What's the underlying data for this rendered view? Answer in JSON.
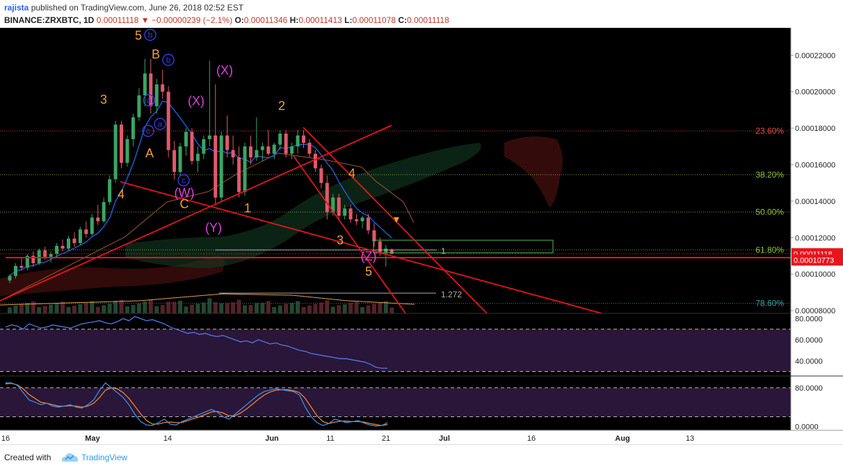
{
  "header": {
    "user": "rajista",
    "published": "published on TradingView.com, June 26, 2018 02:52 EST",
    "symbol": "BINANCE:ZRXBTC, 1D",
    "last": "0.00011118",
    "change_arrow": "▼",
    "change": "−0.00000239 (−2.1%)",
    "o_label": "O:",
    "o": "0.00011346",
    "h_label": "H:",
    "h": "0.00011413",
    "l_label": "L:",
    "l": "0.00011078",
    "c_label": "C:",
    "c": "0.00011118"
  },
  "footer": {
    "created": "Created with",
    "brand": "TradingView",
    "brand_icon": "tradingview-cloud-logo"
  },
  "colors": {
    "background": "#000000",
    "up": "#3aa564",
    "down": "#e05a6a",
    "ma": "#1f5fe0",
    "trendline": "#e8141c",
    "fib": "#c8c8c8",
    "wave_orange": "#f0a030",
    "wave_magenta": "#e040e0",
    "wave_blue": "#3a3ae8",
    "rsi": "#4f79e8",
    "stoch_k": "#3a8ee8",
    "stoch_d": "#f08030"
  },
  "chart_data": [
    {
      "type": "candlestick",
      "title": "",
      "x_axis": {
        "type": "date",
        "ticks": [
          "16",
          "May",
          "14",
          "Jun",
          "11",
          "21",
          "Jul",
          "16",
          "Aug",
          "13"
        ],
        "range": [
          "2018-04-16",
          "2018-08-13"
        ]
      },
      "y_axis": {
        "ticks": [
          "0.00022000",
          "0.00020000",
          "0.00018000",
          "0.00016000",
          "0.00014000",
          "0.00012000",
          "0.00010000",
          "0.00008000"
        ],
        "range": [
          7.85e-05,
          0.000235
        ]
      },
      "grid": false,
      "price_tags": [
        {
          "value": 0.00011118,
          "label": "0.00011118",
          "color": "#e8141c"
        },
        {
          "value": 0.00010773,
          "label": "0.00010773",
          "color": "#e8141c"
        }
      ],
      "fib_levels": [
        {
          "label": "23.60%",
          "value": 0.0001785,
          "color": "#e05050"
        },
        {
          "label": "38.20%",
          "value": 0.0001545,
          "color": "#8fbf40"
        },
        {
          "label": "50.00%",
          "value": 0.000134,
          "color": "#8fbf40"
        },
        {
          "label": "61.80%",
          "value": 0.0001133,
          "color": "#8fbf40"
        },
        {
          "label": "78.60%",
          "value": 8.4e-05,
          "color": "#3aa5a5"
        }
      ],
      "extension_labels": [
        {
          "label": "1",
          "value": 0.0001126
        },
        {
          "label": "1.272",
          "value": 8.88e-05
        }
      ],
      "candles_approx": [
        [
          9.65e-05,
          0.0001,
          9.5e-05,
          9.9e-05
        ],
        [
          9.9e-05,
          0.000106,
          9.75e-05,
          0.0001045
        ],
        [
          0.0001045,
          0.000109,
          0.000102,
          0.0001035
        ],
        [
          0.0001035,
          0.000111,
          0.000102,
          0.00011
        ],
        [
          0.00011,
          0.0001125,
          0.000104,
          0.000106
        ],
        [
          0.000106,
          0.000114,
          0.000105,
          0.000113
        ],
        [
          0.000113,
          0.000115,
          0.000108,
          0.0001095
        ],
        [
          0.0001095,
          0.0001125,
          0.0001065,
          0.000111
        ],
        [
          0.000111,
          0.000117,
          0.000109,
          0.0001155
        ],
        [
          0.0001155,
          0.000119,
          0.0001125,
          0.000114
        ],
        [
          0.000114,
          0.000121,
          0.000113,
          0.0001195
        ],
        [
          0.0001195,
          0.000123,
          0.000115,
          0.000117
        ],
        [
          0.000117,
          0.000126,
          0.000116,
          0.0001245
        ],
        [
          0.0001245,
          0.000129,
          0.00012,
          0.000122
        ],
        [
          0.000122,
          0.000133,
          0.000121,
          0.000131
        ],
        [
          0.000131,
          0.000138,
          0.000127,
          0.000129
        ],
        [
          0.000129,
          0.000142,
          0.000128,
          0.0001395
        ],
        [
          0.0001395,
          0.000154,
          0.000138,
          0.000152
        ],
        [
          0.000152,
          0.000184,
          0.00015,
          0.000182
        ],
        [
          0.000182,
          0.000184,
          0.000158,
          0.000161
        ],
        [
          0.000161,
          0.000176,
          0.000159,
          0.000174
        ],
        [
          0.000174,
          0.000188,
          0.00017,
          0.000186
        ],
        [
          0.000186,
          0.000202,
          0.000184,
          0.000198
        ],
        [
          0.000198,
          0.000218,
          0.000192,
          0.00021
        ],
        [
          0.00021,
          0.000218,
          0.000188,
          0.000192
        ],
        [
          0.000192,
          0.000207,
          0.000188,
          0.000204
        ],
        [
          0.000204,
          0.000212,
          0.000196,
          0.0002
        ],
        [
          0.0002,
          0.000203,
          0.000164,
          0.000168
        ],
        [
          0.000168,
          0.000173,
          0.000152,
          0.000156
        ],
        [
          0.000156,
          0.000172,
          0.000154,
          0.00017
        ],
        [
          0.00017,
          0.00018,
          0.000165,
          0.000178
        ],
        [
          0.000178,
          0.00018,
          0.00016,
          0.000162
        ],
        [
          0.000162,
          0.00017,
          0.000156,
          0.000166
        ],
        [
          0.000166,
          0.000176,
          0.000163,
          0.000174
        ],
        [
          0.000174,
          0.000217,
          0.00017,
          0.000176
        ],
        [
          0.000176,
          0.000204,
          0.000138,
          0.000142
        ],
        [
          0.000142,
          0.000178,
          0.00014,
          0.000176
        ],
        [
          0.000176,
          0.000187,
          0.000164,
          0.000168
        ],
        [
          0.000168,
          0.000176,
          0.00016,
          0.000164
        ],
        [
          0.000164,
          0.00017,
          0.000142,
          0.000145
        ],
        [
          0.000145,
          0.000172,
          0.000143,
          0.00017
        ],
        [
          0.00017,
          0.000176,
          0.00016,
          0.000164
        ],
        [
          0.000164,
          0.000186,
          0.000162,
          0.000168
        ],
        [
          0.000168,
          0.000172,
          0.000162,
          0.00017
        ],
        [
          0.00017,
          0.000179,
          0.000165,
          0.000166
        ],
        [
          0.000166,
          0.000172,
          0.000163,
          0.000171
        ],
        [
          0.000171,
          0.000179,
          0.000168,
          0.000177
        ],
        [
          0.000177,
          0.000179,
          0.000164,
          0.000166
        ],
        [
          0.000166,
          0.000172,
          0.000163,
          0.00017
        ],
        [
          0.00017,
          0.000179,
          0.000166,
          0.000176
        ],
        [
          0.000176,
          0.000179,
          0.000169,
          0.000172
        ],
        [
          0.000172,
          0.000174,
          0.000164,
          0.000166
        ],
        [
          0.000166,
          0.000168,
          0.000156,
          0.000158
        ],
        [
          0.000158,
          0.00016,
          0.000147,
          0.00015
        ],
        [
          0.00015,
          0.000154,
          0.00013,
          0.000134
        ],
        [
          0.000134,
          0.000144,
          0.000132,
          0.000142
        ],
        [
          0.000142,
          0.000144,
          0.00013,
          0.000132
        ],
        [
          0.000132,
          0.000138,
          0.00013,
          0.000136
        ],
        [
          0.000136,
          0.000138,
          0.000128,
          0.00013
        ],
        [
          0.00013,
          0.000133,
          0.000127,
          0.000129
        ],
        [
          0.000129,
          0.000132,
          0.000125,
          0.000131
        ],
        [
          0.000131,
          0.000133,
          0.000122,
          0.000124
        ],
        [
          0.000124,
          0.000128,
          0.000115,
          0.000118
        ],
        [
          0.000118,
          0.00012,
          0.00011,
          0.000112
        ],
        [
          0.000112,
          0.000116,
          0.000104,
          0.000114
        ],
        [
          0.0001135,
          0.0001141,
          0.0001108,
          0.0001112
        ]
      ]
    },
    {
      "type": "line",
      "title": "",
      "series": [
        {
          "values": [
            72,
            74,
            73,
            70,
            75,
            73,
            71,
            72,
            74,
            73,
            72,
            71,
            73,
            75,
            76,
            77,
            78,
            76,
            75,
            77,
            80,
            78,
            82,
            80,
            78,
            79,
            77,
            75,
            72,
            70,
            68,
            66,
            67,
            65,
            66,
            64,
            63,
            64,
            62,
            60,
            58,
            59,
            57,
            60,
            58,
            56,
            57,
            55,
            54,
            52,
            50,
            49,
            47,
            46,
            45,
            44,
            43,
            42,
            42,
            41,
            40,
            39,
            37,
            34,
            33,
            33
          ]
        }
      ],
      "y_axis": {
        "ticks": [
          "80.0000",
          "60.0000",
          "40.0000"
        ],
        "range": [
          27,
          83
        ]
      },
      "levels": [
        70,
        30
      ]
    },
    {
      "type": "line",
      "title": "",
      "series": [
        {
          "values": [
            90,
            90,
            85,
            70,
            55,
            50,
            45,
            48,
            42,
            40,
            42,
            45,
            40,
            38,
            45,
            55,
            75,
            90,
            80,
            70,
            60,
            45,
            25,
            10,
            3,
            2,
            8,
            15,
            5,
            3,
            10,
            15,
            20,
            25,
            30,
            35,
            30,
            20,
            15,
            25,
            35,
            45,
            55,
            65,
            72,
            75,
            78,
            76,
            74,
            72,
            65,
            40,
            20,
            8,
            2,
            6,
            15,
            12,
            8,
            10,
            12,
            7,
            3,
            1,
            2,
            8
          ]
        },
        {
          "values": [
            88,
            89,
            86,
            78,
            66,
            58,
            50,
            48,
            45,
            42,
            42,
            43,
            42,
            40,
            42,
            48,
            60,
            75,
            80,
            78,
            70,
            58,
            42,
            26,
            12,
            5,
            5,
            8,
            9,
            8,
            8,
            12,
            16,
            20,
            25,
            30,
            31,
            28,
            22,
            22,
            28,
            36,
            46,
            56,
            65,
            71,
            75,
            76,
            76,
            74,
            70,
            58,
            40,
            22,
            10,
            6,
            9,
            11,
            11,
            10,
            10,
            9,
            6,
            4,
            2,
            4
          ]
        }
      ],
      "y_axis": {
        "ticks": [
          "80.0000",
          "0.0000"
        ],
        "range": [
          -8,
          100
        ]
      },
      "levels": [
        80,
        20
      ]
    }
  ],
  "wave_labels": {
    "orange": [
      "5",
      "B",
      "3",
      "A",
      "4",
      "C",
      "1",
      "2",
      "4",
      "3",
      "5"
    ],
    "magenta": [
      "(X)",
      "(X)",
      "(W)",
      "(Y)",
      "(Z)"
    ],
    "blue": [
      "b",
      "b",
      "a",
      "a",
      "c",
      "c"
    ]
  }
}
